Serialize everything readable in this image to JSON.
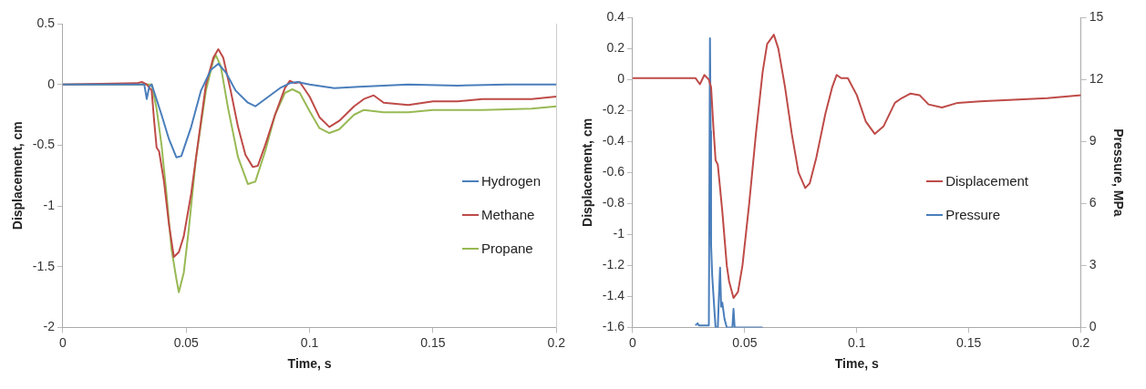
{
  "chart_data": [
    {
      "type": "line",
      "xlabel": "Time, s",
      "ylabel": "Displacement, cm",
      "xlim": [
        0,
        0.2
      ],
      "xticks": [
        0,
        0.05,
        0.1,
        0.15,
        0.2
      ],
      "ylim": [
        -2,
        0.5
      ],
      "yticks": [
        -2,
        -1.5,
        -1,
        -0.5,
        0,
        0.5
      ],
      "grid": false,
      "legend": "right",
      "series": [
        {
          "name": "Hydrogen",
          "color": "#4a7ebb",
          "x": [
            0,
            0.033,
            0.034,
            0.035,
            0.036,
            0.04,
            0.043,
            0.046,
            0.048,
            0.052,
            0.056,
            0.06,
            0.063,
            0.066,
            0.07,
            0.075,
            0.078,
            0.082,
            0.088,
            0.092,
            0.095,
            0.1,
            0.11,
            0.12,
            0.14,
            0.16,
            0.18,
            0.2
          ],
          "values": [
            0,
            0,
            -0.12,
            -0.02,
            0,
            -0.25,
            -0.45,
            -0.6,
            -0.59,
            -0.35,
            -0.05,
            0.12,
            0.17,
            0.1,
            -0.05,
            -0.15,
            -0.18,
            -0.12,
            -0.03,
            0.01,
            0.02,
            0,
            -0.03,
            -0.02,
            0,
            -0.01,
            0,
            0
          ]
        },
        {
          "name": "Methane",
          "color": "#be4b48",
          "x": [
            0,
            0.03,
            0.032,
            0.034,
            0.036,
            0.037,
            0.038,
            0.039,
            0.041,
            0.043,
            0.045,
            0.047,
            0.049,
            0.052,
            0.055,
            0.058,
            0.061,
            0.063,
            0.065,
            0.068,
            0.071,
            0.074,
            0.077,
            0.079,
            0.082,
            0.086,
            0.09,
            0.092,
            0.094,
            0.096,
            0.1,
            0.104,
            0.108,
            0.112,
            0.118,
            0.122,
            0.126,
            0.13,
            0.14,
            0.15,
            0.16,
            0.17,
            0.18,
            0.19,
            0.2
          ],
          "values": [
            0,
            0.01,
            0.02,
            0,
            -0.05,
            -0.3,
            -0.52,
            -0.55,
            -0.8,
            -1.15,
            -1.42,
            -1.38,
            -1.25,
            -0.9,
            -0.45,
            0,
            0.22,
            0.29,
            0.22,
            -0.05,
            -0.35,
            -0.58,
            -0.68,
            -0.67,
            -0.5,
            -0.25,
            -0.03,
            0.03,
            0.01,
            0.02,
            -0.1,
            -0.27,
            -0.35,
            -0.3,
            -0.18,
            -0.12,
            -0.09,
            -0.15,
            -0.17,
            -0.14,
            -0.14,
            -0.12,
            -0.12,
            -0.12,
            -0.1
          ]
        },
        {
          "name": "Propane",
          "color": "#98b954",
          "x": [
            0,
            0.034,
            0.036,
            0.038,
            0.04,
            0.042,
            0.044,
            0.046,
            0.047,
            0.049,
            0.051,
            0.054,
            0.058,
            0.061,
            0.062,
            0.064,
            0.067,
            0.071,
            0.075,
            0.078,
            0.082,
            0.086,
            0.09,
            0.093,
            0.096,
            0.1,
            0.104,
            0.108,
            0.112,
            0.118,
            0.122,
            0.13,
            0.14,
            0.15,
            0.17,
            0.19,
            0.2
          ],
          "values": [
            0,
            0,
            0,
            -0.2,
            -0.5,
            -0.9,
            -1.35,
            -1.6,
            -1.71,
            -1.55,
            -1.2,
            -0.6,
            -0.05,
            0.2,
            0.24,
            0.15,
            -0.2,
            -0.6,
            -0.82,
            -0.8,
            -0.55,
            -0.25,
            -0.07,
            -0.04,
            -0.07,
            -0.22,
            -0.36,
            -0.4,
            -0.37,
            -0.25,
            -0.21,
            -0.23,
            -0.23,
            -0.21,
            -0.21,
            -0.2,
            -0.18
          ]
        }
      ]
    },
    {
      "type": "line",
      "xlabel": "Time, s",
      "ylabel": "Displacement, cm",
      "y2label": "Pressure, MPa",
      "xlim": [
        0,
        0.2
      ],
      "xticks": [
        0,
        0.05,
        0.1,
        0.15,
        0.2
      ],
      "ylim": [
        -1.6,
        0.4
      ],
      "yticks": [
        -1.6,
        -1.4,
        -1.2,
        -1,
        -0.8,
        -0.6,
        -0.4,
        -0.2,
        0,
        0.2,
        0.4
      ],
      "y2lim": [
        0,
        15
      ],
      "y2ticks": [
        0,
        3,
        6,
        9,
        12,
        15
      ],
      "grid": false,
      "legend": "right",
      "series": [
        {
          "name": "Displacement",
          "color": "#be4b48",
          "x": [
            0,
            0.01,
            0.02,
            0.028,
            0.03,
            0.032,
            0.034,
            0.035,
            0.036,
            0.037,
            0.038,
            0.04,
            0.042,
            0.043,
            0.045,
            0.047,
            0.049,
            0.052,
            0.055,
            0.058,
            0.06,
            0.063,
            0.065,
            0.068,
            0.071,
            0.074,
            0.077,
            0.079,
            0.082,
            0.086,
            0.089,
            0.091,
            0.093,
            0.096,
            0.1,
            0.104,
            0.108,
            0.112,
            0.117,
            0.12,
            0.124,
            0.128,
            0.132,
            0.138,
            0.145,
            0.155,
            0.17,
            0.185,
            0.2
          ],
          "values": [
            0.01,
            0.01,
            0.01,
            0.01,
            -0.03,
            0.03,
            0,
            -0.05,
            -0.3,
            -0.52,
            -0.55,
            -0.85,
            -1.2,
            -1.3,
            -1.41,
            -1.37,
            -1.2,
            -0.8,
            -0.35,
            0.05,
            0.23,
            0.29,
            0.2,
            -0.05,
            -0.35,
            -0.6,
            -0.7,
            -0.67,
            -0.5,
            -0.22,
            -0.05,
            0.03,
            0.01,
            0.01,
            -0.1,
            -0.27,
            -0.35,
            -0.3,
            -0.15,
            -0.12,
            -0.09,
            -0.1,
            -0.16,
            -0.18,
            -0.15,
            -0.14,
            -0.13,
            -0.12,
            -0.1
          ]
        },
        {
          "name": "Pressure",
          "color": "#4a7ebb",
          "axis": "y2",
          "x": [
            0.028,
            0.029,
            0.0295,
            0.034,
            0.0345,
            0.0348,
            0.035,
            0.0355,
            0.0365,
            0.037,
            0.038,
            0.0385,
            0.039,
            0.0395,
            0.04,
            0.041,
            0.042,
            0.0445,
            0.045,
            0.0455,
            0.058
          ],
          "values": [
            0.1,
            0.2,
            0.1,
            0.1,
            14,
            9.5,
            4,
            2.5,
            0.8,
            0,
            0,
            1.5,
            2.9,
            1,
            1.2,
            0.4,
            0,
            0,
            0.9,
            0,
            0
          ]
        }
      ]
    }
  ]
}
